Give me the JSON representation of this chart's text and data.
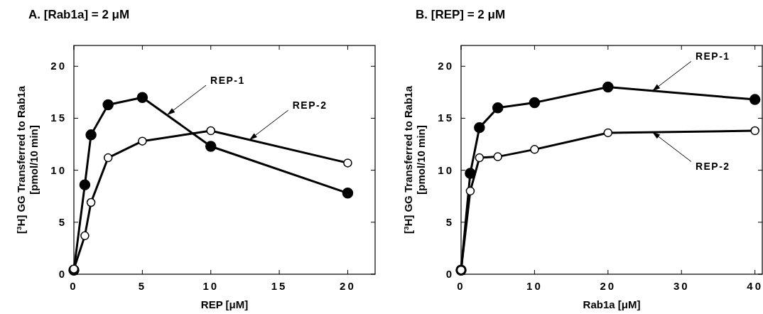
{
  "chart_data": [
    {
      "type": "line",
      "title": "A. [Rab1a] = 2 μM",
      "xlabel": "REP  [μM]",
      "ylabel": "[$^{3}$H] GG Transferred to Rab1a\n[pmol/10 min]",
      "xlim": [
        0,
        22
      ],
      "ylim": [
        0,
        22
      ],
      "xticks": [
        0,
        5,
        10,
        15,
        20
      ],
      "yticks": [
        0,
        5,
        10,
        15,
        20
      ],
      "grid": false,
      "marker": "circle",
      "line_style": "solid",
      "series": [
        {
          "color": "#000000",
          "x": [
            0,
            0.8,
            1.25,
            2.5,
            5,
            10,
            20
          ],
          "values": [
            0.4,
            8.6,
            13.4,
            16.3,
            17.0,
            12.3,
            7.8
          ]
        },
        {
          "color": "#ffffff",
          "x": [
            0,
            0.8,
            1.25,
            2.5,
            5,
            10,
            20
          ],
          "values": [
            0.5,
            3.7,
            6.9,
            11.2,
            12.8,
            13.8,
            10.7
          ]
        }
      ],
      "annotations": [
        {
          "text": "REP-1",
          "x": 6.8,
          "y": 15.3
        },
        {
          "text": "REP-2",
          "x": 12.8,
          "y": 12.9
        }
      ]
    },
    {
      "type": "line",
      "title": "B. [REP] = 2 μM",
      "xlabel": "Rab1a  [μM]",
      "ylabel": "[$^{3}$H] GG Transferred to Rab1a\n[pmol/10 min]",
      "xlim": [
        0,
        41
      ],
      "ylim": [
        0,
        22
      ],
      "xticks": [
        0,
        10,
        20,
        30,
        40
      ],
      "yticks": [
        0,
        5,
        10,
        15,
        20
      ],
      "grid": false,
      "marker": "circle",
      "line_style": "solid",
      "series": [
        {
          "color": "#000000",
          "x": [
            0,
            1.25,
            2.5,
            5,
            10,
            20,
            40
          ],
          "values": [
            0.4,
            9.7,
            14.1,
            16.0,
            16.5,
            18.0,
            16.8
          ]
        },
        {
          "color": "#ffffff",
          "x": [
            0,
            1.25,
            2.5,
            5,
            10,
            20,
            40
          ],
          "values": [
            0.4,
            8.0,
            11.2,
            11.3,
            12.0,
            13.6,
            13.8
          ]
        }
      ],
      "annotations": [
        {
          "text": "REP-1",
          "x": 26,
          "y": 17.6
        },
        {
          "text": "REP-2",
          "x": 26,
          "y": 13.7
        }
      ]
    }
  ]
}
